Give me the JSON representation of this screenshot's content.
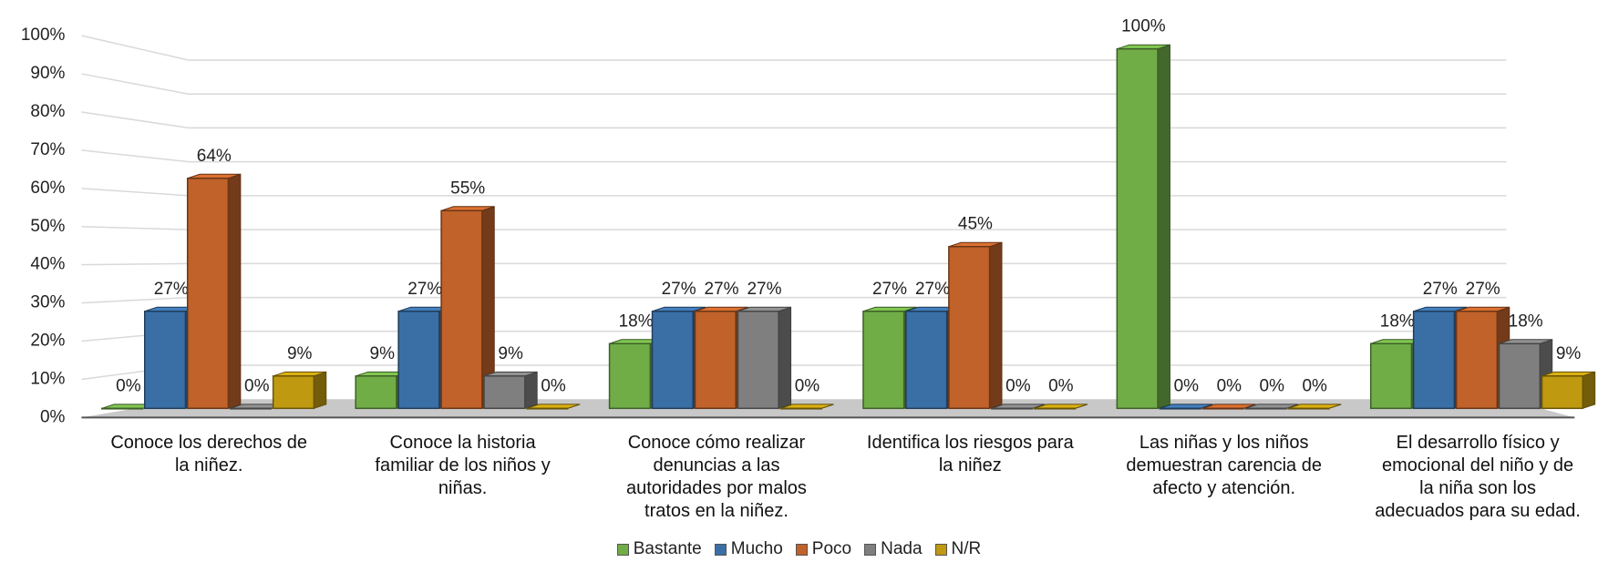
{
  "chart_data": {
    "type": "bar3d",
    "categories": [
      "Conoce los derechos de la niñez.",
      "Conoce la historia familiar de los niños y niñas.",
      "Conoce cómo realizar denuncias a las autoridades por malos tratos en la niñez.",
      "Identifica los riesgos para la niñez",
      "Las niñas y los niños demuestran carencia de afecto y atención.",
      "El desarrollo físico y emocional del niño y de la niña son los adecuados para su edad."
    ],
    "series": [
      {
        "name": "Bastante",
        "color": "#70ad47",
        "values": [
          0,
          9,
          18,
          27,
          100,
          18
        ],
        "value_labels": [
          "0%",
          "9%",
          "18%",
          "27%",
          "100%",
          "18%"
        ]
      },
      {
        "name": "Mucho",
        "color": "#3a6fa6",
        "values": [
          27,
          27,
          27,
          27,
          0,
          27
        ],
        "value_labels": [
          "27%",
          "27%",
          "27%",
          "27%",
          "0%",
          "27%"
        ]
      },
      {
        "name": "Poco",
        "color": "#c0622a",
        "values": [
          64,
          55,
          27,
          45,
          0,
          27
        ],
        "value_labels": [
          "64%",
          "55%",
          "27%",
          "45%",
          "0%",
          "27%"
        ]
      },
      {
        "name": "Nada",
        "color": "#7f7f7f",
        "values": [
          0,
          9,
          27,
          0,
          0,
          18
        ],
        "value_labels": [
          "0%",
          "9%",
          "27%",
          "0%",
          "0%",
          "18%"
        ]
      },
      {
        "name": "N/R",
        "color": "#bf9a10",
        "values": [
          9,
          0,
          0,
          0,
          0,
          9
        ],
        "value_labels": [
          "9%",
          "0%",
          "0%",
          "0%",
          "0%",
          "9%"
        ]
      }
    ],
    "ylim": [
      0,
      100
    ],
    "yticks": [
      {
        "value": 0,
        "label": "0%"
      },
      {
        "value": 10,
        "label": "10%"
      },
      {
        "value": 20,
        "label": "20%"
      },
      {
        "value": 30,
        "label": "30%"
      },
      {
        "value": 40,
        "label": "40%"
      },
      {
        "value": 50,
        "label": "50%"
      },
      {
        "value": 60,
        "label": "60%"
      },
      {
        "value": 70,
        "label": "70%"
      },
      {
        "value": 80,
        "label": "80%"
      },
      {
        "value": 90,
        "label": "90%"
      },
      {
        "value": 100,
        "label": "100%"
      }
    ],
    "grid": true,
    "legend": "bottom"
  }
}
